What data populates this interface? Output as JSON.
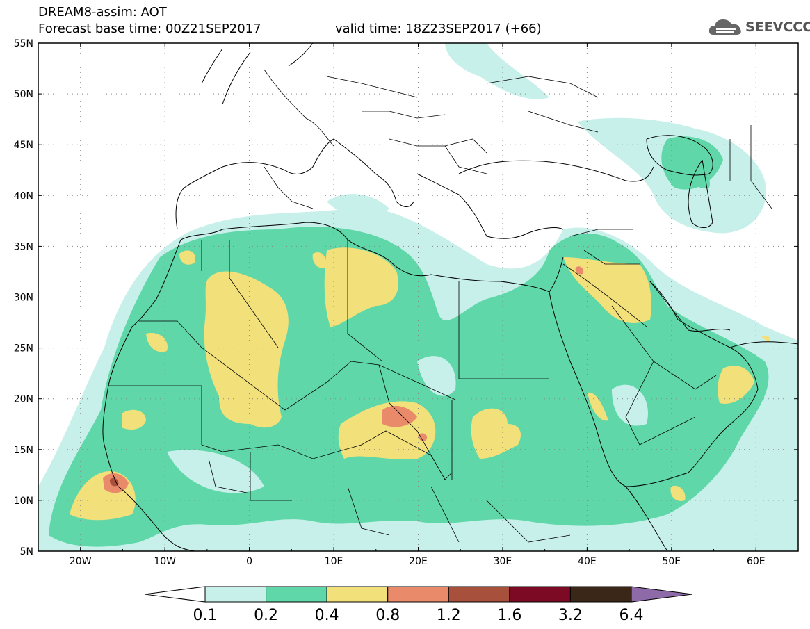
{
  "header": {
    "line1": "DREAM8-assim: AOT",
    "line2": "Forecast base time: 00Z21SEP2017",
    "valid": "valid time: 18Z23SEP2017 (+66)"
  },
  "logo": {
    "text": "SEEVCCC",
    "icon": "cloud-icon"
  },
  "map": {
    "lat_labels": [
      "55N",
      "50N",
      "45N",
      "40N",
      "35N",
      "30N",
      "25N",
      "20N",
      "15N",
      "10N",
      "5N"
    ],
    "lon_labels": [
      "20W",
      "10W",
      "0",
      "10E",
      "20E",
      "30E",
      "40E",
      "50E",
      "60E"
    ],
    "lat_range": [
      5,
      55
    ],
    "lon_range": [
      -25,
      65
    ],
    "grid": "dotted"
  },
  "colorbar": {
    "labels": [
      "0.1",
      "0.2",
      "0.4",
      "0.8",
      "1.2",
      "1.6",
      "3.2",
      "6.4"
    ],
    "colors": [
      "#c8f0ea",
      "#5fd7a9",
      "#f2e07a",
      "#e98b6b",
      "#a7513c",
      "#7d0a24",
      "#3b2717"
    ],
    "under_color": "#ffffff",
    "over_color": "#8e6aa8"
  }
}
